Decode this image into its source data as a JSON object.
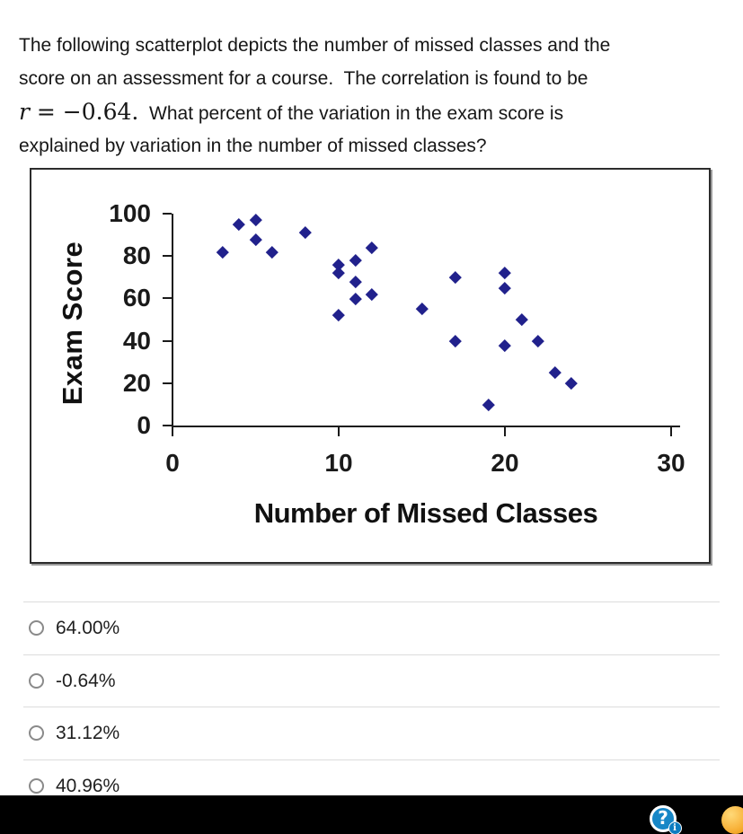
{
  "question": {
    "line1": "The following scatterplot depicts the number of missed classes and the",
    "line2": "score on an assessment for a course.  The correlation is found to be",
    "line3_var": "r",
    "line3_eq": " = −0.64.",
    "line3_rest": "  What percent of the variation in the exam score is",
    "line4": "explained by variation in the number of missed classes?"
  },
  "chart_data": {
    "type": "scatter",
    "title": "",
    "xlabel": "Number of Missed Classes",
    "ylabel": "Exam Score",
    "xlim": [
      0,
      30
    ],
    "ylim": [
      0,
      100
    ],
    "x_ticks": [
      0,
      10,
      20,
      30
    ],
    "y_ticks": [
      0,
      20,
      40,
      60,
      80,
      100
    ],
    "grid": false,
    "legend": "none",
    "marker": "diamond",
    "marker_color": "#21218c",
    "points": [
      [
        3,
        82
      ],
      [
        4,
        95
      ],
      [
        5,
        97
      ],
      [
        5,
        88
      ],
      [
        6,
        82
      ],
      [
        8,
        91
      ],
      [
        10,
        76
      ],
      [
        10,
        72
      ],
      [
        10,
        52
      ],
      [
        11,
        78
      ],
      [
        11,
        68
      ],
      [
        11,
        60
      ],
      [
        12,
        84
      ],
      [
        12,
        62
      ],
      [
        15,
        55
      ],
      [
        17,
        70
      ],
      [
        17,
        40
      ],
      [
        19,
        10
      ],
      [
        20,
        72
      ],
      [
        20,
        65
      ],
      [
        20,
        38
      ],
      [
        21,
        50
      ],
      [
        22,
        40
      ],
      [
        23,
        25
      ],
      [
        24,
        20
      ]
    ]
  },
  "options": [
    {
      "label": "64.00%"
    },
    {
      "label": "-0.64%"
    },
    {
      "label": "31.12%"
    },
    {
      "label": "40.96%"
    }
  ],
  "footer": {
    "help_glyph": "?",
    "info_glyph": "i",
    "colors": {
      "bar": "#000000",
      "help_blue": "#1787c7",
      "badge_blue": "#0c7cc0",
      "orb_orange": "#f5a623"
    }
  }
}
